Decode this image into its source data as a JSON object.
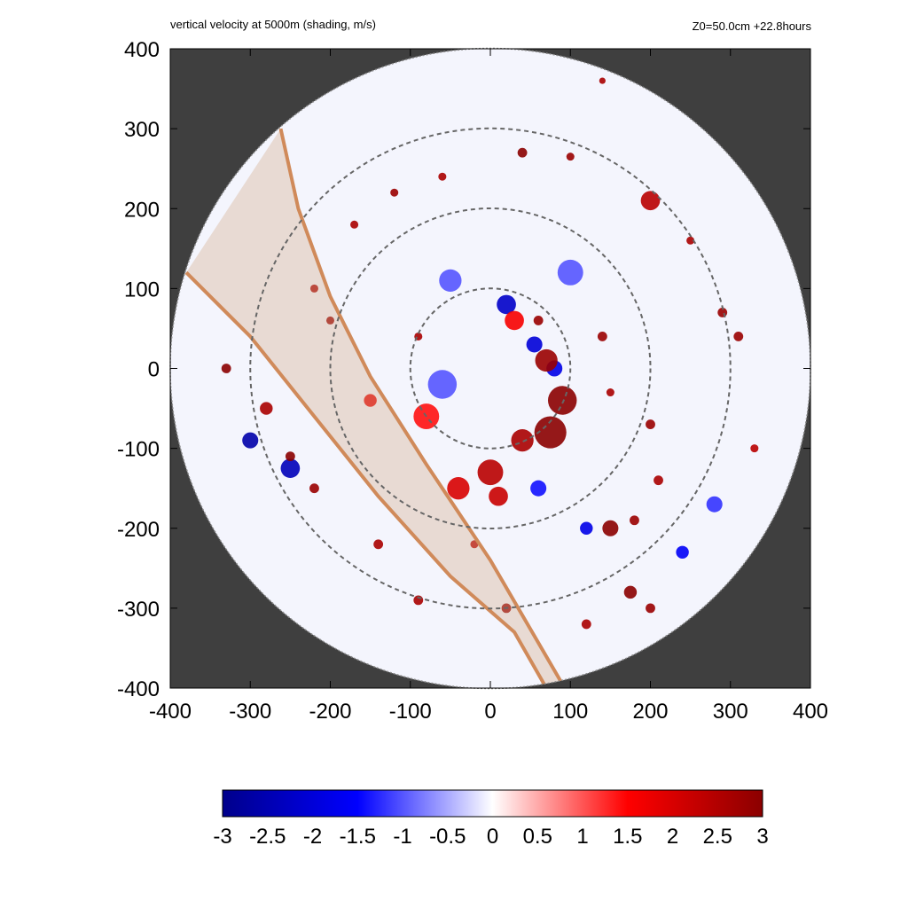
{
  "chart_data": {
    "type": "heatmap",
    "title_left": "vertical velocity at 5000m (shading, m/s)",
    "title_right": "Z0=50.0cm  +22.8hours",
    "xlim": [
      -400,
      400
    ],
    "ylim": [
      -400,
      400
    ],
    "x_ticks": [
      "-400",
      "-300",
      "-200",
      "-100",
      "0",
      "100",
      "200",
      "300",
      "400"
    ],
    "y_ticks": [
      "400",
      "300",
      "200",
      "100",
      "0",
      "-100",
      "-200",
      "-300",
      "-400"
    ],
    "x_tick_values": [
      -400,
      -300,
      -200,
      -100,
      0,
      100,
      200,
      300,
      400
    ],
    "y_tick_values": [
      400,
      300,
      200,
      100,
      0,
      -100,
      -200,
      -300,
      -400
    ],
    "domain_radius": 400,
    "reference_circles": [
      100,
      200,
      300
    ],
    "colorbar": {
      "range": [
        -3,
        3
      ],
      "tick_labels": [
        "-3",
        "-2.5",
        "-2",
        "-1.5",
        "-1",
        "-0.5",
        "0",
        "0.5",
        "1",
        "1.5",
        "2",
        "2.5",
        "3"
      ],
      "tick_values": [
        -3,
        -2.5,
        -2,
        -1.5,
        -1,
        -0.5,
        0,
        0.5,
        1,
        1.5,
        2,
        2.5,
        3
      ],
      "colors": [
        "#00008b",
        "#0000ff",
        "#ffffff",
        "#ff0000",
        "#8b0000"
      ]
    },
    "swath_left_edge": [
      [
        -380,
        120
      ],
      [
        -300,
        40
      ],
      [
        -220,
        -60
      ],
      [
        -140,
        -160
      ],
      [
        -50,
        -260
      ],
      [
        30,
        -330
      ],
      [
        70,
        -400
      ]
    ],
    "swath_right_edge": [
      [
        -262,
        300
      ],
      [
        -240,
        200
      ],
      [
        -200,
        90
      ],
      [
        -150,
        -10
      ],
      [
        -80,
        -120
      ],
      [
        0,
        -240
      ],
      [
        90,
        -395
      ]
    ],
    "features": [
      {
        "x": 20,
        "y": 80,
        "w": -2.2,
        "r": 12
      },
      {
        "x": 55,
        "y": 30,
        "w": -2.0,
        "r": 10
      },
      {
        "x": 80,
        "y": 0,
        "w": -1.8,
        "r": 10
      },
      {
        "x": 70,
        "y": 10,
        "w": 2.8,
        "r": 14
      },
      {
        "x": 90,
        "y": -40,
        "w": 3.0,
        "r": 18
      },
      {
        "x": 75,
        "y": -80,
        "w": 3.0,
        "r": 20
      },
      {
        "x": 40,
        "y": -90,
        "w": 2.6,
        "r": 14
      },
      {
        "x": 0,
        "y": -130,
        "w": 2.4,
        "r": 16
      },
      {
        "x": -40,
        "y": -150,
        "w": 2.0,
        "r": 14
      },
      {
        "x": 30,
        "y": 60,
        "w": 1.6,
        "r": 12
      },
      {
        "x": 10,
        "y": -160,
        "w": 2.2,
        "r": 12
      },
      {
        "x": -80,
        "y": -60,
        "w": 1.4,
        "r": 16
      },
      {
        "x": -150,
        "y": -40,
        "w": 1.8,
        "r": 8
      },
      {
        "x": -300,
        "y": -90,
        "w": -2.6,
        "r": 10
      },
      {
        "x": -250,
        "y": -125,
        "w": -2.4,
        "r": 12
      },
      {
        "x": -280,
        "y": -50,
        "w": 2.6,
        "r": 8
      },
      {
        "x": -250,
        "y": -110,
        "w": 3.0,
        "r": 6
      },
      {
        "x": -220,
        "y": -150,
        "w": 2.8,
        "r": 6
      },
      {
        "x": -330,
        "y": 0,
        "w": 3.0,
        "r": 6
      },
      {
        "x": -200,
        "y": 60,
        "w": 2.8,
        "r": 5
      },
      {
        "x": -220,
        "y": 100,
        "w": 2.6,
        "r": 5
      },
      {
        "x": -170,
        "y": 180,
        "w": 2.6,
        "r": 5
      },
      {
        "x": -120,
        "y": 220,
        "w": 2.8,
        "r": 5
      },
      {
        "x": -60,
        "y": 240,
        "w": 2.6,
        "r": 5
      },
      {
        "x": 40,
        "y": 270,
        "w": 3.0,
        "r": 6
      },
      {
        "x": 100,
        "y": 265,
        "w": 2.8,
        "r": 5
      },
      {
        "x": 200,
        "y": 210,
        "w": 2.4,
        "r": 12
      },
      {
        "x": 250,
        "y": 160,
        "w": 2.6,
        "r": 5
      },
      {
        "x": 290,
        "y": 70,
        "w": 2.8,
        "r": 6
      },
      {
        "x": 310,
        "y": 40,
        "w": 2.8,
        "r": 6
      },
      {
        "x": 200,
        "y": -70,
        "w": 2.8,
        "r": 6
      },
      {
        "x": 210,
        "y": -140,
        "w": 2.6,
        "r": 6
      },
      {
        "x": 150,
        "y": -200,
        "w": 3.0,
        "r": 10
      },
      {
        "x": 180,
        "y": -190,
        "w": 2.8,
        "r": 6
      },
      {
        "x": 175,
        "y": -280,
        "w": 3.0,
        "r": 8
      },
      {
        "x": 200,
        "y": -300,
        "w": 2.8,
        "r": 6
      },
      {
        "x": 120,
        "y": -320,
        "w": 2.6,
        "r": 6
      },
      {
        "x": 120,
        "y": -200,
        "w": -1.8,
        "r": 8
      },
      {
        "x": 240,
        "y": -230,
        "w": -1.6,
        "r": 8
      },
      {
        "x": -20,
        "y": -220,
        "w": 2.4,
        "r": 5
      },
      {
        "x": -140,
        "y": -220,
        "w": 2.6,
        "r": 6
      },
      {
        "x": -90,
        "y": -290,
        "w": 2.6,
        "r": 6
      },
      {
        "x": 20,
        "y": -300,
        "w": 2.8,
        "r": 6
      },
      {
        "x": 60,
        "y": 60,
        "w": 2.8,
        "r": 6
      },
      {
        "x": 140,
        "y": 40,
        "w": 2.8,
        "r": 6
      },
      {
        "x": 150,
        "y": -30,
        "w": 2.6,
        "r": 5
      },
      {
        "x": -90,
        "y": 40,
        "w": 2.6,
        "r": 5
      },
      {
        "x": 140,
        "y": 360,
        "w": 2.6,
        "r": 4
      },
      {
        "x": 330,
        "y": -100,
        "w": 2.4,
        "r": 5
      },
      {
        "x": -50,
        "y": 110,
        "w": -1.0,
        "r": 14
      },
      {
        "x": 100,
        "y": 120,
        "w": -1.0,
        "r": 16
      },
      {
        "x": -60,
        "y": -20,
        "w": -1.0,
        "r": 18
      },
      {
        "x": 60,
        "y": -150,
        "w": -1.4,
        "r": 10
      },
      {
        "x": 280,
        "y": -170,
        "w": -1.2,
        "r": 10
      }
    ]
  }
}
